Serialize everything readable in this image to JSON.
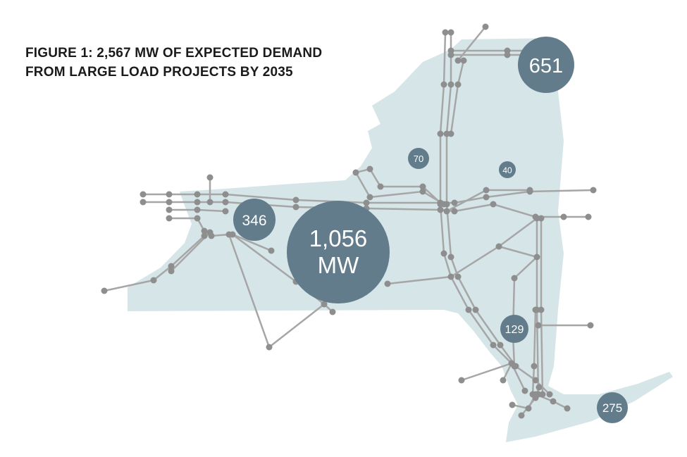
{
  "figure": {
    "title_line1": "FIGURE 1: 2,567 MW OF EXPECTED DEMAND",
    "title_line2": "FROM LARGE LOAD PROJECTS BY 2035"
  },
  "bubbles": [
    {
      "id": "western-ny",
      "value": "346"
    },
    {
      "id": "central-ny",
      "value": "1,056",
      "unit": "MW"
    },
    {
      "id": "north-country",
      "value": "651"
    },
    {
      "id": "mohawk",
      "value": "70"
    },
    {
      "id": "capital-north",
      "value": "40"
    },
    {
      "id": "hudson-valley",
      "value": "129"
    },
    {
      "id": "long-island",
      "value": "275"
    }
  ],
  "colors": {
    "map_fill": "#d6e5e8",
    "bubble": "#627c8b",
    "line": "#a6a6a6",
    "node": "#8e8e8e"
  }
}
